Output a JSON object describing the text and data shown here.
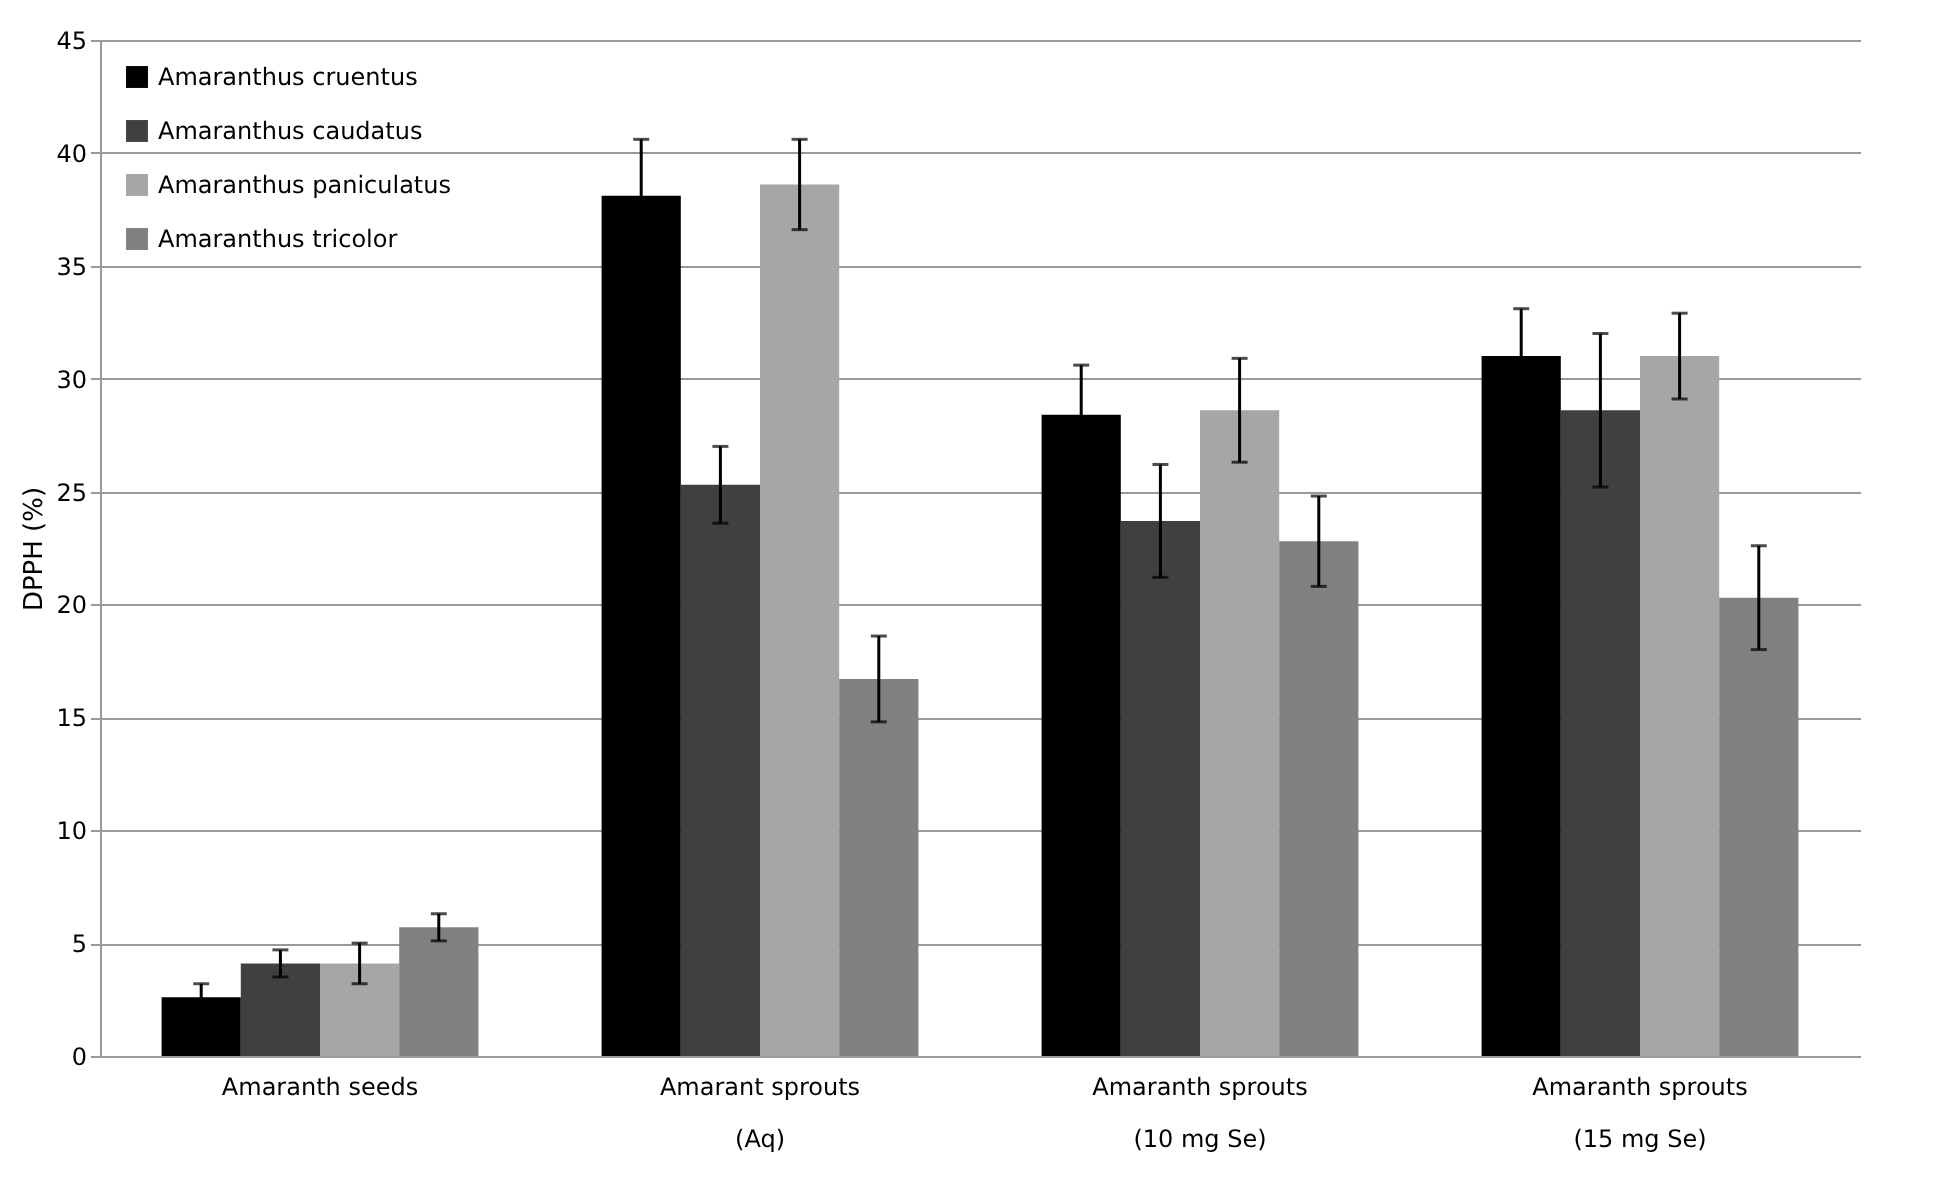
{
  "chart_data": {
    "type": "bar",
    "ylabel": "DPPH (%)",
    "categories": [
      "Amaranth seeds",
      "Amarant sprouts\n(Aq)",
      "Amaranth sprouts\n(10 mg Se)",
      "Amaranth sprouts\n(15 mg Se)"
    ],
    "series": [
      {
        "name": "Amaranthus cruentus",
        "color": "#000000",
        "values": [
          2.6,
          38.1,
          28.4,
          31.0
        ],
        "errors": [
          0.6,
          2.5,
          2.2,
          2.1
        ]
      },
      {
        "name": "Amaranthus caudatus",
        "color": "#404040",
        "values": [
          4.1,
          25.3,
          23.7,
          28.6
        ],
        "errors": [
          0.6,
          1.7,
          2.5,
          3.4
        ]
      },
      {
        "name": "Amaranthus paniculatus",
        "color": "#a6a6a6",
        "values": [
          4.1,
          38.6,
          28.6,
          31.0
        ],
        "errors": [
          0.9,
          2.0,
          2.3,
          1.9
        ]
      },
      {
        "name": "Amaranthus tricolor",
        "color": "#808080",
        "values": [
          5.7,
          16.7,
          22.8,
          20.3
        ],
        "errors": [
          0.6,
          1.9,
          2.0,
          2.3
        ]
      }
    ],
    "ylim": [
      0,
      45
    ],
    "yticks": [
      0,
      5,
      10,
      15,
      20,
      25,
      30,
      35,
      40,
      45
    ],
    "grid": "y",
    "legend": "top left"
  }
}
